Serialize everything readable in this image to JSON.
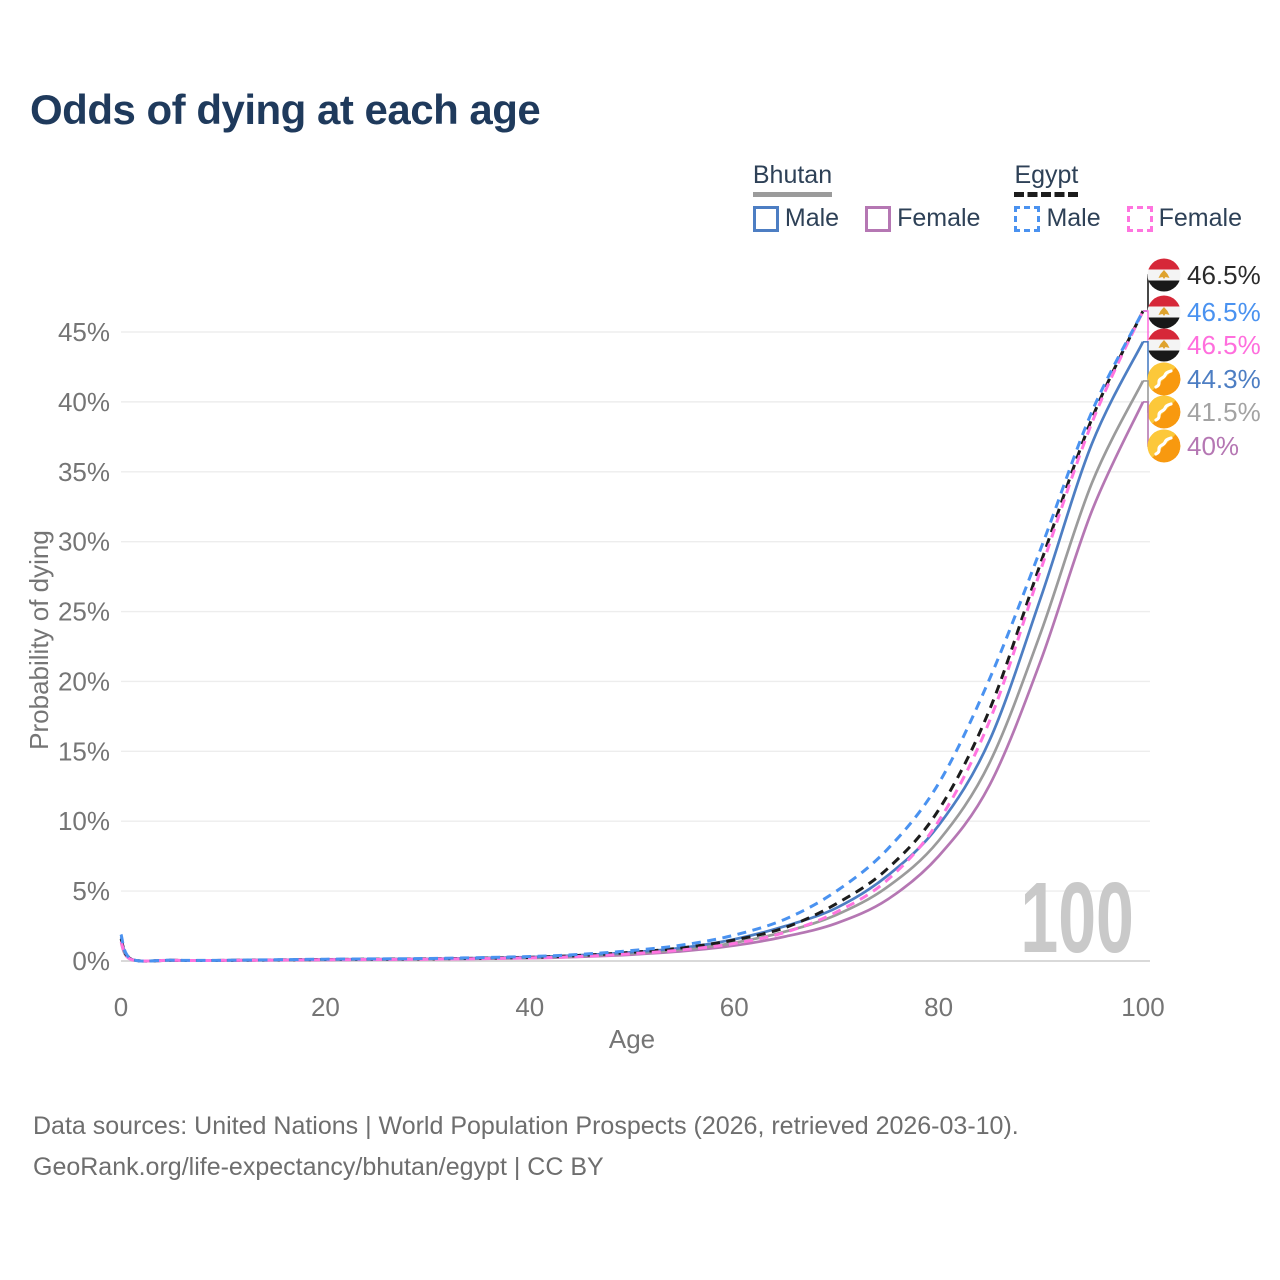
{
  "title": "Odds of dying at each age",
  "legend": {
    "groups": [
      {
        "label": "Bhutan",
        "line_style": "solid",
        "underline_color": "#9b9b9b",
        "items": [
          {
            "label": "Male",
            "color": "#4d7ec3"
          },
          {
            "label": "Female",
            "color": "#b577b3"
          }
        ]
      },
      {
        "label": "Egypt",
        "line_style": "dashed",
        "underline_color": "#1c1c1c",
        "items": [
          {
            "label": "Male",
            "color": "#4a92f0"
          },
          {
            "label": "Female",
            "color": "#ff74df"
          }
        ]
      }
    ]
  },
  "watermark_age": "100",
  "footer": {
    "line1": "Data sources: United Nations | World Population Prospects (2026, retrieved 2026-03-10).",
    "line2": "GeoRank.org/life-expectancy/bhutan/egypt | CC BY"
  },
  "chart_data": {
    "type": "line",
    "title": "Odds of dying at each age",
    "xlabel": "Age",
    "ylabel": "Probability of dying",
    "xlim": [
      0,
      100
    ],
    "ylim": [
      0,
      48
    ],
    "x_ticks": [
      0,
      20,
      40,
      60,
      80,
      100
    ],
    "y_ticks": [
      0,
      5,
      10,
      15,
      20,
      25,
      30,
      35,
      40,
      45
    ],
    "y_tick_suffix": "%",
    "grid": true,
    "legend_position": "top-right",
    "x": [
      0,
      1,
      5,
      10,
      20,
      30,
      40,
      45,
      50,
      55,
      60,
      65,
      70,
      75,
      80,
      85,
      90,
      95,
      100
    ],
    "series": [
      {
        "name": "Egypt",
        "country": "Egypt",
        "sex": "Both",
        "color": "#1c1c1c",
        "dash": true,
        "flag": "egypt",
        "end_label": "46.5%",
        "label_color": "#2b2b2b",
        "values": [
          1.6,
          0.13,
          0.05,
          0.04,
          0.11,
          0.15,
          0.26,
          0.4,
          0.62,
          0.95,
          1.5,
          2.4,
          4.1,
          6.6,
          10.8,
          18.0,
          28.5,
          38.8,
          46.5
        ]
      },
      {
        "name": "Egypt Male",
        "country": "Egypt",
        "sex": "Male",
        "color": "#4a92f0",
        "dash": true,
        "flag": "egypt",
        "end_label": "46.5%",
        "label_color": "#4a92f0",
        "values": [
          1.9,
          0.15,
          0.06,
          0.05,
          0.13,
          0.18,
          0.32,
          0.48,
          0.75,
          1.15,
          1.85,
          3.0,
          5.0,
          8.0,
          12.7,
          20.2,
          29.5,
          39.3,
          46.5
        ]
      },
      {
        "name": "Egypt Female",
        "country": "Egypt",
        "sex": "Female",
        "color": "#ff74df",
        "dash": true,
        "flag": "egypt",
        "end_label": "46.5%",
        "label_color": "#ff6edd",
        "values": [
          1.4,
          0.11,
          0.05,
          0.04,
          0.09,
          0.13,
          0.22,
          0.33,
          0.52,
          0.8,
          1.25,
          2.05,
          3.5,
          5.8,
          10.0,
          17.2,
          28.0,
          38.5,
          46.5
        ]
      },
      {
        "name": "Bhutan Male",
        "country": "Bhutan",
        "sex": "Male",
        "color": "#4d7ec3",
        "dash": false,
        "flag": "bhutan",
        "end_label": "44.3%",
        "label_color": "#4d7ec3",
        "values": [
          1.7,
          0.14,
          0.06,
          0.05,
          0.12,
          0.16,
          0.28,
          0.42,
          0.63,
          0.95,
          1.55,
          2.5,
          3.8,
          6.1,
          9.7,
          15.8,
          26.0,
          37.0,
          44.3
        ]
      },
      {
        "name": "Bhutan",
        "country": "Bhutan",
        "sex": "Both",
        "color": "#9b9b9b",
        "dash": false,
        "flag": "bhutan",
        "end_label": "41.5%",
        "label_color": "#a3a3a3",
        "values": [
          1.5,
          0.12,
          0.05,
          0.04,
          0.1,
          0.14,
          0.24,
          0.36,
          0.55,
          0.83,
          1.3,
          2.1,
          3.3,
          5.3,
          8.6,
          14.2,
          23.5,
          34.2,
          41.5
        ]
      },
      {
        "name": "Bhutan Female",
        "country": "Bhutan",
        "sex": "Female",
        "color": "#b577b3",
        "dash": false,
        "flag": "bhutan",
        "end_label": "40%",
        "label_color": "#b577b3",
        "values": [
          1.3,
          0.1,
          0.04,
          0.04,
          0.08,
          0.12,
          0.2,
          0.3,
          0.46,
          0.7,
          1.1,
          1.75,
          2.7,
          4.4,
          7.5,
          12.6,
          21.5,
          32.2,
          40.0
        ]
      }
    ]
  }
}
